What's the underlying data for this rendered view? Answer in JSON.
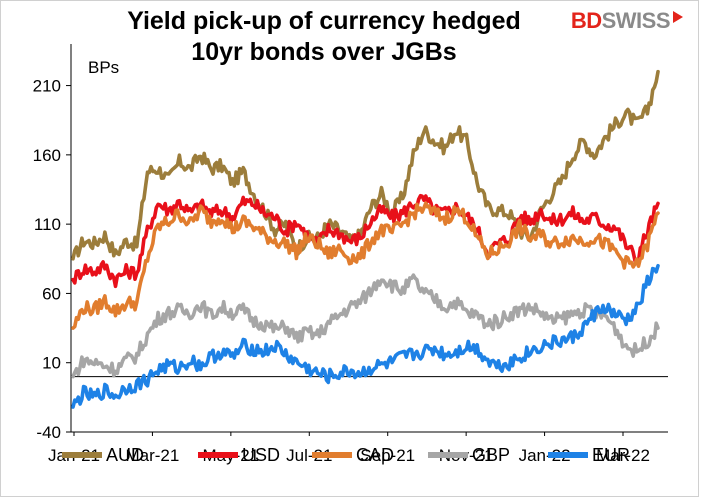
{
  "header": {
    "title_line1": "Yield pick-up of currency hedged",
    "title_line2": "10yr bonds over JGBs",
    "logo_part1": "BD",
    "logo_part2": "SWISS"
  },
  "chart_data": {
    "type": "line",
    "ylabel": "BPs",
    "ylim": [
      -40,
      240
    ],
    "yticks": [
      -40,
      10,
      60,
      110,
      160,
      210
    ],
    "x_labels": [
      "Jan-21",
      "Mar-21",
      "May-21",
      "Jul-21",
      "Sep-21",
      "Nov-21",
      "Jan-22",
      "Mar-22"
    ],
    "legend_position": "bottom",
    "grid": false,
    "series": [
      {
        "name": "AUD",
        "color": "#9c7d3b",
        "values": [
          85,
          98,
          96,
          102,
          88,
          98,
          95,
          148,
          150,
          142,
          155,
          150,
          160,
          150,
          152,
          140,
          148,
          132,
          120,
          106,
          110,
          92,
          100,
          100,
          110,
          106,
          98,
          102,
          122,
          132,
          118,
          130,
          160,
          178,
          170,
          165,
          178,
          170,
          140,
          122,
          120,
          118,
          105,
          100,
          120,
          132,
          142,
          160,
          170,
          160,
          172,
          182,
          190,
          182,
          192,
          220
        ]
      },
      {
        "name": "USD",
        "color": "#e8101a",
        "values": [
          70,
          78,
          76,
          80,
          70,
          76,
          75,
          105,
          125,
          120,
          126,
          118,
          124,
          118,
          120,
          115,
          126,
          125,
          118,
          115,
          105,
          112,
          102,
          96,
          106,
          104,
          98,
          100,
          112,
          120,
          115,
          118,
          125,
          128,
          120,
          118,
          122,
          116,
          106,
          90,
          96,
          100,
          116,
          112,
          120,
          112,
          114,
          118,
          112,
          115,
          110,
          108,
          95,
          85,
          105,
          125
        ]
      },
      {
        "name": "CAD",
        "color": "#e17d2e",
        "values": [
          35,
          50,
          48,
          55,
          47,
          53,
          53,
          86,
          108,
          112,
          118,
          110,
          120,
          112,
          116,
          106,
          112,
          108,
          102,
          98,
          96,
          90,
          100,
          96,
          88,
          92,
          86,
          86,
          98,
          106,
          104,
          110,
          118,
          122,
          118,
          114,
          120,
          115,
          100,
          88,
          92,
          98,
          108,
          100,
          102,
          96,
          98,
          100,
          98,
          100,
          96,
          90,
          82,
          80,
          95,
          118
        ]
      },
      {
        "name": "GBP",
        "color": "#a6a6a6",
        "values": [
          0,
          12,
          10,
          8,
          5,
          12,
          15,
          30,
          42,
          46,
          48,
          46,
          52,
          44,
          50,
          46,
          48,
          40,
          38,
          34,
          36,
          28,
          32,
          30,
          38,
          44,
          50,
          54,
          62,
          72,
          66,
          62,
          70,
          60,
          56,
          50,
          54,
          46,
          44,
          38,
          40,
          45,
          48,
          50,
          46,
          40,
          42,
          45,
          48,
          46,
          44,
          35,
          22,
          18,
          26,
          35
        ]
      },
      {
        "name": "EUR",
        "color": "#1e82e6",
        "values": [
          -22,
          -12,
          -15,
          -10,
          -14,
          -8,
          -6,
          -2,
          5,
          8,
          6,
          12,
          8,
          14,
          18,
          14,
          22,
          20,
          18,
          22,
          16,
          10,
          6,
          2,
          0,
          2,
          4,
          2,
          6,
          8,
          10,
          14,
          16,
          18,
          20,
          16,
          18,
          22,
          20,
          12,
          8,
          10,
          14,
          18,
          22,
          24,
          26,
          28,
          35,
          45,
          50,
          44,
          40,
          48,
          68,
          80
        ]
      }
    ]
  }
}
